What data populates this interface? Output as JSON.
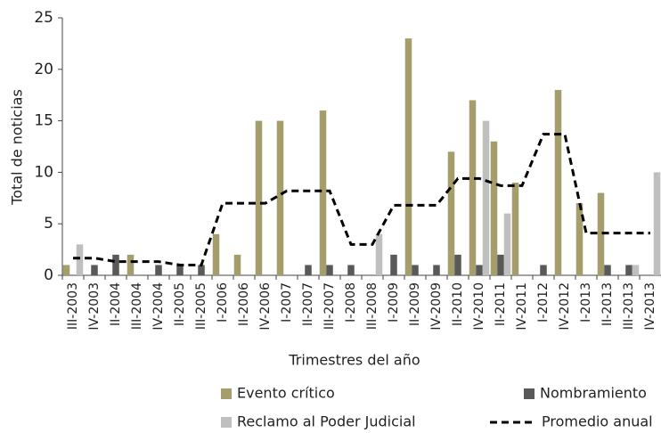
{
  "chart_data": {
    "type": "bar",
    "y_label": "Total de noticias",
    "x_label": "Trimestres del año",
    "categories": [
      "III-2003",
      "IV-2003",
      "II-2004",
      "III-2004",
      "IV-2004",
      "II-2005",
      "III-2005",
      "I-2006",
      "II-2006",
      "IV-2006",
      "I-2007",
      "II-2007",
      "III-2007",
      "I-2008",
      "III-2008",
      "I-2009",
      "II-2009",
      "IV-2009",
      "II-2010",
      "IV-2010",
      "II-2011",
      "IV-2011",
      "I-2012",
      "IV-2012",
      "I-2013",
      "II-2013",
      "III-2013",
      "IV-2013"
    ],
    "series": [
      {
        "name": "Evento crítico",
        "type": "bar",
        "color": "#a39e6a",
        "values": [
          1,
          0,
          0,
          2,
          0,
          0,
          0,
          4,
          2,
          15,
          15,
          0,
          16,
          0,
          0,
          0,
          23,
          0,
          12,
          17,
          13,
          9,
          0,
          18,
          7,
          8,
          0,
          0
        ]
      },
      {
        "name": "Nombramiento",
        "type": "bar",
        "color": "#595959",
        "values": [
          0,
          1,
          2,
          0,
          1,
          1,
          1,
          0,
          0,
          0,
          0,
          1,
          1,
          1,
          0,
          2,
          1,
          1,
          2,
          1,
          2,
          0,
          1,
          0,
          0,
          1,
          1,
          0
        ]
      },
      {
        "name": "Reclamo al Poder Judicial",
        "type": "bar",
        "color": "#bfbfbf",
        "values": [
          3,
          0,
          0,
          0,
          0,
          0,
          0,
          0,
          0,
          0,
          0,
          0,
          0,
          0,
          4,
          0,
          0,
          0,
          0,
          15,
          6,
          0,
          0,
          0,
          0,
          0,
          1,
          10
        ]
      },
      {
        "name": "Promedio anual",
        "type": "line",
        "color": "#000000",
        "line_style": "dashed",
        "values": [
          1.67,
          1.67,
          1.33,
          1.33,
          1.33,
          1,
          1,
          7,
          7,
          7,
          8.2,
          8.2,
          8.2,
          3,
          3,
          6.8,
          6.8,
          6.8,
          9.4,
          9.4,
          8.7,
          8.7,
          13.7,
          13.7,
          4.1,
          4.1,
          4.1,
          4.1
        ]
      }
    ],
    "ylim": [
      0,
      25
    ],
    "yticks": [
      0,
      5,
      10,
      15,
      20,
      25
    ],
    "grid": false
  }
}
